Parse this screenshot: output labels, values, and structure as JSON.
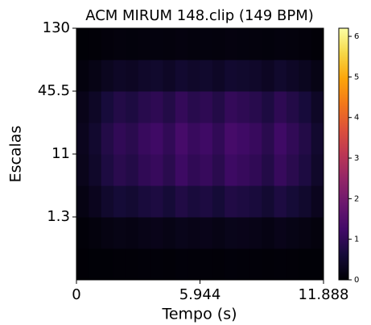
{
  "chart_data": {
    "type": "heatmap",
    "title": "ACM MIRUM 148.clip (149 BPM)",
    "x_label": "Tempo (s)",
    "y_label": "Escalas",
    "xlim": [
      0,
      11.888
    ],
    "xticks": [
      0,
      5.944,
      11.888
    ],
    "ylim": [
      0,
      4
    ],
    "yticks": [
      {
        "value": 1,
        "label": "1.3"
      },
      {
        "value": 2,
        "label": "11"
      },
      {
        "value": 3,
        "label": "45.5"
      },
      {
        "value": 4,
        "label": "130"
      }
    ],
    "colormap": "inferno",
    "zlim": [
      0,
      6.2
    ],
    "zticks": [
      0,
      1,
      2,
      3,
      4,
      5,
      6
    ],
    "z": [
      [
        0.02,
        0.03,
        0.04,
        0.05,
        0.05,
        0.06,
        0.06,
        0.05,
        0.07,
        0.06,
        0.06,
        0.05,
        0.07,
        0.06,
        0.06,
        0.05,
        0.06,
        0.05,
        0.04,
        0.03
      ],
      [
        0.06,
        0.1,
        0.16,
        0.2,
        0.18,
        0.22,
        0.24,
        0.2,
        0.26,
        0.22,
        0.24,
        0.2,
        0.26,
        0.24,
        0.22,
        0.18,
        0.24,
        0.2,
        0.16,
        0.1
      ],
      [
        0.18,
        0.3,
        0.48,
        0.6,
        0.54,
        0.66,
        0.72,
        0.6,
        0.78,
        0.66,
        0.72,
        0.6,
        0.78,
        0.72,
        0.66,
        0.54,
        0.72,
        0.6,
        0.48,
        0.3
      ],
      [
        0.27,
        0.45,
        0.72,
        0.9,
        0.81,
        0.99,
        1.08,
        0.9,
        1.17,
        0.99,
        1.08,
        0.9,
        1.17,
        1.08,
        0.99,
        0.81,
        1.08,
        0.9,
        0.72,
        0.45
      ],
      [
        0.3,
        0.5,
        0.8,
        1.0,
        0.9,
        1.1,
        1.2,
        1.0,
        1.3,
        1.1,
        1.2,
        1.0,
        1.3,
        1.2,
        1.1,
        0.9,
        1.2,
        1.0,
        0.8,
        0.5
      ],
      [
        0.24,
        0.4,
        0.64,
        0.8,
        0.72,
        0.88,
        0.96,
        0.8,
        1.04,
        0.88,
        0.96,
        0.8,
        1.04,
        0.96,
        0.88,
        0.72,
        0.96,
        0.8,
        0.64,
        0.4
      ],
      [
        0.12,
        0.2,
        0.32,
        0.4,
        0.36,
        0.44,
        0.48,
        0.4,
        0.52,
        0.44,
        0.48,
        0.4,
        0.52,
        0.48,
        0.44,
        0.36,
        0.48,
        0.4,
        0.32,
        0.2
      ],
      [
        0.03,
        0.05,
        0.08,
        0.1,
        0.09,
        0.11,
        0.12,
        0.1,
        0.13,
        0.11,
        0.12,
        0.1,
        0.13,
        0.12,
        0.11,
        0.09,
        0.12,
        0.1,
        0.08,
        0.05
      ]
    ]
  }
}
